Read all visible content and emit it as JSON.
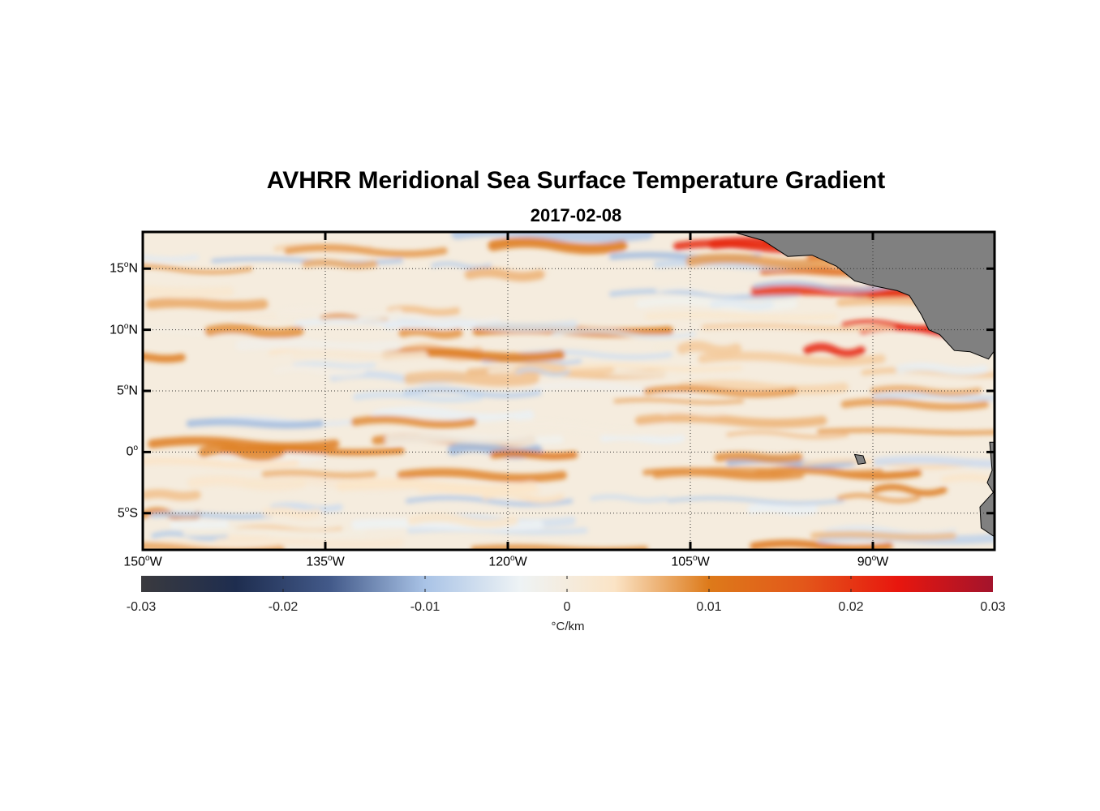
{
  "title": "AVHRR Meridional Sea Surface Temperature Gradient",
  "subtitle": "2017-02-08",
  "map": {
    "lon_range": [
      -150,
      -80
    ],
    "lat_range": [
      -8,
      18
    ],
    "x_ticks": [
      {
        "value": -150,
        "deg": "150",
        "hemi": "W"
      },
      {
        "value": -135,
        "deg": "135",
        "hemi": "W"
      },
      {
        "value": -120,
        "deg": "120",
        "hemi": "W"
      },
      {
        "value": -105,
        "deg": "105",
        "hemi": "W"
      },
      {
        "value": -90,
        "deg": "90",
        "hemi": "W"
      }
    ],
    "y_ticks": [
      {
        "value": 15,
        "deg": "15",
        "hemi": "N"
      },
      {
        "value": 10,
        "deg": "10",
        "hemi": "N"
      },
      {
        "value": 5,
        "deg": "5",
        "hemi": "N"
      },
      {
        "value": 0,
        "deg": "0",
        "hemi": ""
      },
      {
        "value": -5,
        "deg": "5",
        "hemi": "S"
      }
    ],
    "grid": "dotted",
    "land_color": "#808080"
  },
  "colorbar": {
    "range": [
      -0.03,
      0.03
    ],
    "tick_values": [
      -0.03,
      -0.02,
      -0.01,
      0,
      0.01,
      0.02,
      0.03
    ],
    "tick_labels": [
      "-0.03",
      "-0.02",
      "-0.01",
      "0",
      "0.01",
      "0.02",
      "0.03"
    ],
    "units": "°C/km",
    "colors": [
      "#3a3a3e",
      "#1e2d4f",
      "#435a8a",
      "#a9c3e6",
      "#eef3f5",
      "#fbe4c6",
      "#dd7a1a",
      "#e3571a",
      "#e8160e",
      "#a3142c"
    ]
  }
}
